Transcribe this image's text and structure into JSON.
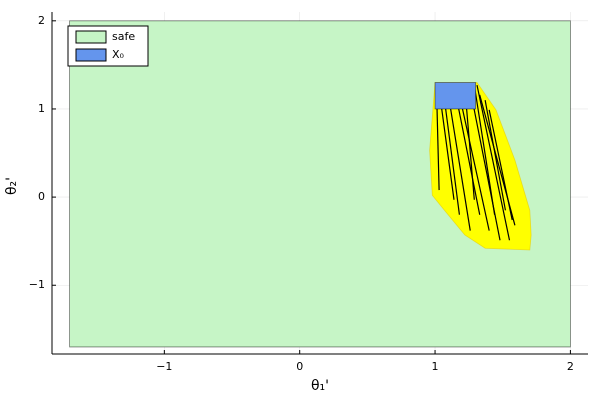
{
  "chart_data": {
    "type": "polygon",
    "xlabel": "θ₁'",
    "ylabel": "θ₂'",
    "xlim": [
      -1.83,
      2.13
    ],
    "ylim": [
      -1.78,
      2.1
    ],
    "xticks": [
      {
        "value": -1,
        "label": "−1"
      },
      0,
      1,
      2
    ],
    "yticks": [
      {
        "value": -1,
        "label": "−1"
      },
      0,
      1,
      2
    ],
    "grid": true,
    "legend": "top-left",
    "series": [
      {
        "name": "safe",
        "color": "#c6f5c6",
        "x": [
          -1.7,
          2,
          2,
          -1.7
        ],
        "y": [
          -1.7,
          -1.7,
          2,
          2
        ]
      },
      {
        "color": "#ffff00",
        "x": [
          1.0,
          1.31,
          1.45,
          1.59,
          1.7,
          1.71,
          1.7,
          1.37,
          1.22,
          1.07,
          0.98,
          0.96
        ],
        "y": [
          1.3,
          1.3,
          0.99,
          0.42,
          -0.15,
          -0.43,
          -0.6,
          -0.58,
          -0.43,
          -0.15,
          0.02,
          0.53
        ]
      },
      {
        "name": "X₀",
        "color": "#6495ed",
        "x": [
          1,
          1.3,
          1.3,
          1
        ],
        "y": [
          1,
          1,
          1.3,
          1.3
        ]
      }
    ],
    "trajectories": [
      {
        "x": [
          1.01,
          1.03
        ],
        "y": [
          1.28,
          0.08
        ]
      },
      {
        "x": [
          1.03,
          1.14
        ],
        "y": [
          1.22,
          -0.03
        ]
      },
      {
        "x": [
          1.09,
          1.26
        ],
        "y": [
          1.24,
          -0.38
        ]
      },
      {
        "x": [
          1.14,
          1.33
        ],
        "y": [
          1.27,
          -0.2
        ]
      },
      {
        "x": [
          1.18,
          1.4
        ],
        "y": [
          1.16,
          -0.38
        ]
      },
      {
        "x": [
          1.22,
          1.29
        ],
        "y": [
          1.24,
          -0.03
        ]
      },
      {
        "x": [
          1.26,
          1.48
        ],
        "y": [
          1.22,
          -0.49
        ]
      },
      {
        "x": [
          1.29,
          1.44
        ],
        "y": [
          1.27,
          -0.2
        ]
      },
      {
        "x": [
          1.31,
          1.55
        ],
        "y": [
          1.27,
          -0.49
        ]
      },
      {
        "x": [
          1.33,
          1.59
        ],
        "y": [
          1.16,
          -0.32
        ]
      },
      {
        "x": [
          1.37,
          1.52
        ],
        "y": [
          1.1,
          -0.15
        ]
      },
      {
        "x": [
          1.07,
          1.18
        ],
        "y": [
          1.1,
          -0.2
        ]
      },
      {
        "x": [
          1.4,
          1.57
        ],
        "y": [
          0.99,
          -0.26
        ]
      }
    ],
    "trajectory_color": "#000000"
  }
}
